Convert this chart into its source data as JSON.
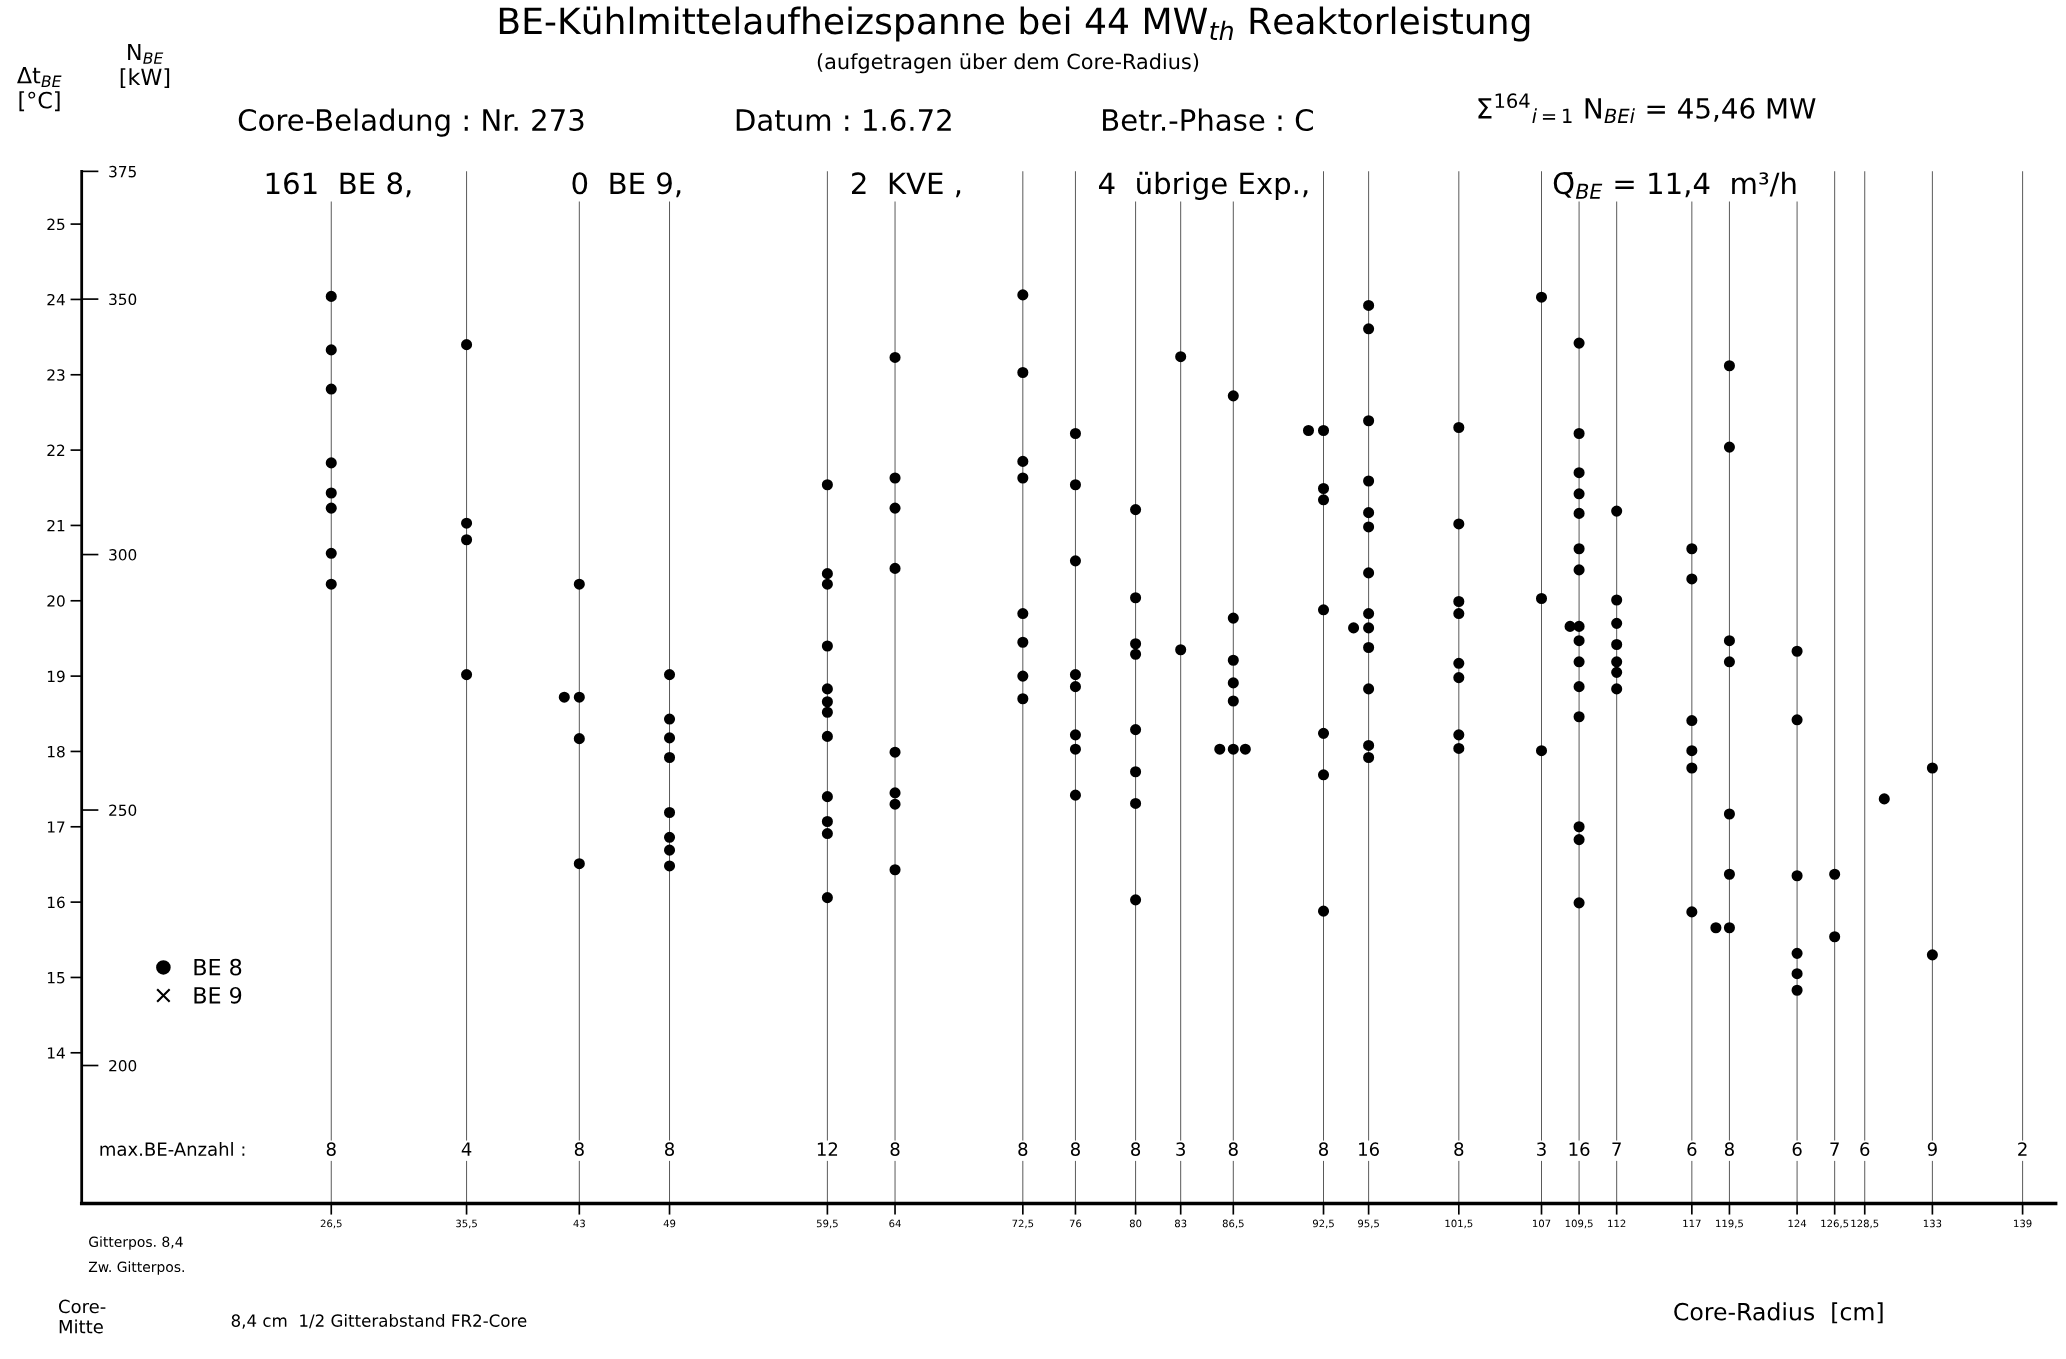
{
  "chart_data": {
    "type": "scatter",
    "title": "BE-Kühlmittelaufheizspanne bei 44 MW$_{th}$ Reaktorleistung",
    "subtitle": "(aufgetragen über dem Core-Radius)",
    "xlabel": "Core-Radius  [cm]",
    "ylabel": "Δt$_{BE}$\n[°C]",
    "y2label": "N$_{BE}$\n[kW]",
    "xlim": [
      9.9,
      141.2
    ],
    "ylim": [
      12.0,
      25.7
    ],
    "y2lim": [
      173,
      375
    ],
    "xticks": [
      {
        "value": 26.5,
        "label": "26,5"
      },
      {
        "value": 35.5,
        "label": "35,5"
      },
      43,
      49,
      {
        "value": 59.5,
        "label": "59,5"
      },
      64,
      {
        "value": 72.5,
        "label": "72,5"
      },
      76,
      80,
      83,
      {
        "value": 86.5,
        "label": "86,5"
      },
      {
        "value": 92.5,
        "label": "92,5"
      },
      {
        "value": 95.5,
        "label": "95,5"
      },
      {
        "value": 101.5,
        "label": "101,5"
      },
      107,
      {
        "value": 109.5,
        "label": "109,5"
      },
      112,
      117,
      {
        "value": 119.5,
        "label": "119,5"
      },
      124,
      {
        "value": 126.5,
        "label": "126,5"
      },
      {
        "value": 128.5,
        "label": "128,5"
      },
      133,
      139
    ],
    "yticks": [
      14,
      15,
      16,
      17,
      18,
      19,
      20,
      21,
      22,
      23,
      24,
      25
    ],
    "y2ticks": [
      200,
      250,
      300,
      350,
      375
    ],
    "grid": "x",
    "legend": "bottom left",
    "series": [
      {
        "name": "BE 8",
        "color": "#000000",
        "marker": "circle",
        "x": [
          26.5,
          26.5,
          26.5,
          26.5,
          26.5,
          26.5,
          26.5,
          26.5,
          35.5,
          35.5,
          35.5,
          35.5,
          43,
          43,
          43,
          43,
          42.0,
          49,
          49,
          49,
          49,
          49,
          49,
          49,
          49,
          59.5,
          59.5,
          59.5,
          59.5,
          59.5,
          59.5,
          59.5,
          59.5,
          59.5,
          59.5,
          59.5,
          59.5,
          64,
          64,
          64,
          64,
          64,
          64,
          64,
          64,
          72.5,
          72.5,
          72.5,
          72.5,
          72.5,
          72.5,
          72.5,
          72.5,
          76,
          76,
          76,
          76,
          76,
          76,
          76,
          76,
          80,
          80,
          80,
          80,
          80,
          80,
          80,
          80,
          83,
          83,
          86.5,
          86.5,
          86.5,
          86.5,
          86.5,
          86.5,
          85.6,
          87.3,
          92.5,
          92.5,
          92.5,
          92.5,
          92.5,
          92.5,
          92.5,
          91.5,
          95.5,
          95.5,
          95.5,
          95.5,
          95.5,
          95.5,
          95.5,
          95.5,
          95.5,
          95.5,
          95.5,
          95.5,
          95.5,
          94.5,
          101.5,
          101.5,
          101.5,
          101.5,
          101.5,
          101.5,
          101.5,
          101.5,
          107,
          107,
          107,
          109.5,
          109.5,
          109.5,
          109.5,
          109.5,
          109.5,
          109.5,
          109.5,
          109.5,
          109.5,
          109.5,
          109.5,
          109.5,
          109.5,
          109.5,
          108.9,
          112,
          112,
          112,
          112,
          112,
          112,
          112,
          117,
          117,
          117,
          117,
          117,
          117,
          119.5,
          119.5,
          119.5,
          119.5,
          119.5,
          119.5,
          119.5,
          118.6,
          124,
          124,
          124,
          124,
          124,
          124,
          126.5,
          126.5,
          129.8,
          133,
          133
        ],
        "values": [
          24.04,
          23.33,
          22.81,
          21.83,
          21.43,
          21.23,
          20.63,
          20.22,
          23.4,
          21.03,
          20.81,
          19.02,
          20.22,
          18.72,
          18.17,
          16.51,
          18.72,
          19.02,
          18.43,
          18.18,
          17.92,
          17.19,
          16.86,
          16.69,
          16.48,
          21.54,
          20.36,
          20.22,
          19.4,
          18.83,
          18.66,
          18.52,
          18.2,
          17.4,
          17.07,
          16.91,
          16.06,
          23.23,
          21.63,
          21.23,
          20.43,
          17.99,
          17.45,
          17.3,
          16.43,
          24.06,
          23.03,
          21.85,
          21.63,
          19.83,
          19.45,
          19.0,
          18.7,
          22.22,
          21.54,
          20.53,
          19.02,
          18.86,
          18.22,
          18.03,
          17.42,
          21.21,
          20.04,
          19.43,
          19.29,
          18.29,
          17.73,
          17.31,
          16.03,
          23.24,
          19.35,
          22.72,
          19.77,
          19.21,
          18.91,
          18.67,
          18.03,
          18.03,
          18.03,
          22.26,
          21.49,
          21.34,
          19.88,
          18.24,
          17.69,
          15.88,
          22.26,
          23.92,
          23.61,
          22.39,
          21.59,
          21.17,
          20.98,
          20.37,
          19.83,
          19.64,
          19.38,
          18.83,
          18.08,
          17.92,
          19.64,
          22.3,
          21.02,
          19.99,
          19.83,
          19.17,
          18.98,
          18.22,
          18.04,
          24.03,
          20.03,
          18.01,
          23.42,
          22.22,
          21.7,
          21.42,
          21.16,
          20.69,
          20.41,
          19.66,
          19.47,
          19.19,
          18.86,
          18.46,
          17.0,
          16.83,
          15.99,
          19.66,
          21.19,
          20.01,
          19.7,
          19.42,
          19.19,
          19.05,
          18.83,
          20.69,
          20.29,
          18.41,
          18.01,
          17.78,
          15.87,
          23.12,
          22.04,
          19.47,
          19.19,
          17.17,
          16.37,
          15.66,
          15.66,
          19.33,
          18.42,
          16.35,
          15.32,
          15.05,
          14.83,
          16.37,
          15.54,
          17.37,
          17.78,
          15.3
        ]
      },
      {
        "name": "BE 9",
        "color": "#000000",
        "marker": "cross"
      }
    ],
    "annotations": [
      "Core-Beladung : Nr. 273",
      "Datum : 1.6.72",
      "Betr.-Phase : C",
      "161  BE 8,",
      "0  BE 9,",
      "2  KVE ,",
      "4  übrige Exp.,",
      "Σ$^{164}$$_{i=1}$ N$_{BEi}$ = 45,46 MW",
      "Q̄$_{BE}$ = 11,4  m³/h",
      "max.BE-Anzahl :",
      "Gitterpos. 8,4",
      "Zw. Gitterpos.",
      "Core-\nMitte",
      "8,4 cm  1/2 Gitterabstand FR2-Core",
      {
        "text": "8",
        "x": 26.5,
        "y": 12.7
      },
      {
        "text": "4",
        "x": 35.5,
        "y": 12.7
      },
      {
        "text": "8",
        "x": 43,
        "y": 12.7
      },
      {
        "text": "8",
        "x": 49,
        "y": 12.7
      },
      {
        "text": "12",
        "x": 59.5,
        "y": 12.7
      },
      {
        "text": "8",
        "x": 64,
        "y": 12.7
      },
      {
        "text": "8",
        "x": 72.5,
        "y": 12.7
      },
      {
        "text": "8",
        "x": 76,
        "y": 12.7
      },
      {
        "text": "8",
        "x": 80,
        "y": 12.7
      },
      {
        "text": "3",
        "x": 83,
        "y": 12.7
      },
      {
        "text": "8",
        "x": 86.5,
        "y": 12.7
      },
      {
        "text": "8",
        "x": 92.5,
        "y": 12.7
      },
      {
        "text": "16",
        "x": 95.5,
        "y": 12.7
      },
      {
        "text": "8",
        "x": 101.5,
        "y": 12.7
      },
      {
        "text": "3",
        "x": 107,
        "y": 12.7
      },
      {
        "text": "16",
        "x": 109.5,
        "y": 12.7
      },
      {
        "text": "7",
        "x": 112,
        "y": 12.7
      },
      {
        "text": "6",
        "x": 117,
        "y": 12.7
      },
      {
        "text": "8",
        "x": 119.5,
        "y": 12.7
      },
      {
        "text": "6",
        "x": 124,
        "y": 12.7
      },
      {
        "text": "7",
        "x": 126.5,
        "y": 12.7
      },
      {
        "text": "6",
        "x": 128.5,
        "y": 12.7
      },
      {
        "text": "9",
        "x": 133,
        "y": 12.7
      },
      {
        "text": "2",
        "x": 139,
        "y": 12.7
      }
    ]
  }
}
